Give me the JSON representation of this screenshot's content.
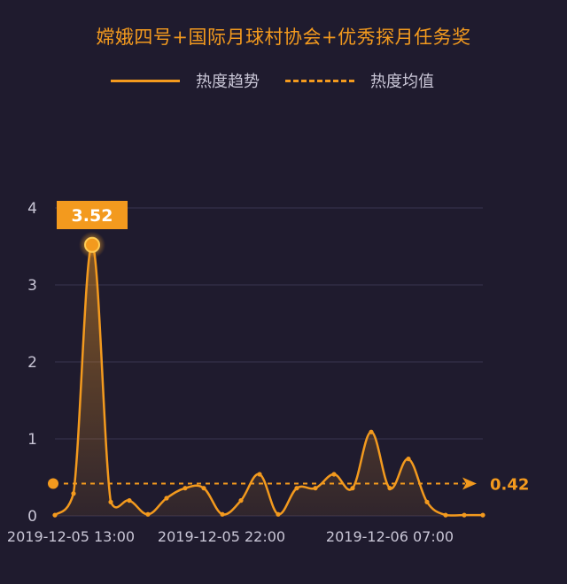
{
  "title": "嫦娥四号+国际月球村协会+优秀探月任务奖",
  "colors": {
    "accent": "#f39a1e",
    "background": "#1f1b2e",
    "grid": "#3a3550",
    "text": "#c9c6d6"
  },
  "chart_data": {
    "type": "line",
    "title": "嫦娥四号+国际月球村协会+优秀探月任务奖",
    "xlabel": "",
    "ylabel": "",
    "ylim": [
      0,
      4
    ],
    "yticks": [
      "0",
      "1",
      "2",
      "3",
      "4"
    ],
    "xtick_labels": [
      "2019-12-05 13:00",
      "2019-12-05 22:00",
      "2019-12-06 07:00"
    ],
    "grid": true,
    "legend_position": "top-center",
    "series": [
      {
        "name": "热度趋势",
        "style": "solid-area",
        "values": [
          0.01,
          0.29,
          3.52,
          0.18,
          0.2,
          0.02,
          0.23,
          0.36,
          0.36,
          0.02,
          0.2,
          0.54,
          0.02,
          0.36,
          0.36,
          0.54,
          0.36,
          1.09,
          0.36,
          0.74,
          0.18,
          0.01,
          0.01,
          0.01
        ]
      },
      {
        "name": "热度均值",
        "style": "dashed",
        "value": 0.42
      }
    ],
    "max_label": "3.52",
    "mean_label": "0.42"
  }
}
